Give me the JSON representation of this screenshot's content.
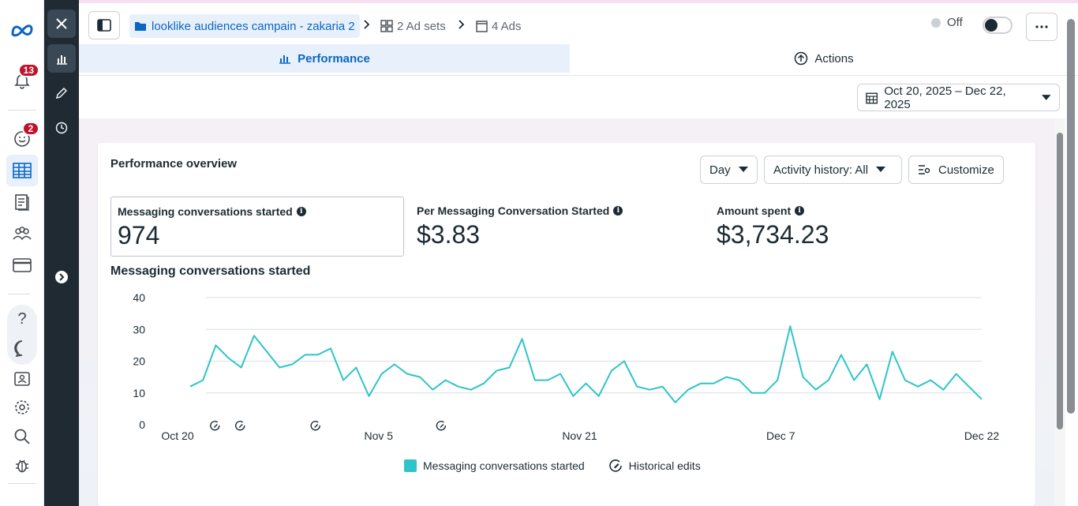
{
  "rail": {
    "notifications_badge": "13",
    "alerts_badge": "2"
  },
  "breadcrumb": {
    "campaign": "looklike audiences campain - zakaria 2",
    "ad_sets": "2 Ad sets",
    "ads": "4 Ads"
  },
  "status": {
    "label": "Off"
  },
  "tabs": [
    {
      "label": "Performance",
      "active": true
    },
    {
      "label": "Actions",
      "active": false
    }
  ],
  "date_range": "Oct 20, 2025 – Dec 22, 2025",
  "overview": {
    "title": "Performance overview",
    "controls": {
      "granularity": "Day",
      "activity": "Activity history: All",
      "customize": "Customize"
    },
    "metrics": [
      {
        "label": "Messaging conversations started",
        "value": "974"
      },
      {
        "label": "Per Messaging Conversation Started",
        "value": "$3.83"
      },
      {
        "label": "Amount spent",
        "value": "$3,734.23"
      }
    ]
  },
  "colors": {
    "accent": "#0a66c2",
    "series": "#2ec4c9",
    "badge": "#c0132a"
  },
  "chart_data": {
    "type": "line",
    "title": "Messaging conversations started",
    "x_tick_labels": [
      "Oct 20",
      "Nov 5",
      "Nov 21",
      "Dec 7",
      "Dec 22"
    ],
    "y_tick_labels": [
      "0",
      "10",
      "20",
      "30",
      "40"
    ],
    "ylim": [
      0,
      40
    ],
    "grid": true,
    "legend_position": "bottom",
    "x_start": "2025-10-20",
    "x_end": "2025-12-22",
    "series": [
      {
        "name": "Messaging conversations started",
        "values": [
          12,
          14,
          25,
          21,
          18,
          28,
          23,
          18,
          19,
          22,
          22,
          24,
          14,
          18,
          9,
          16,
          19,
          16,
          15,
          11,
          14,
          12,
          11,
          13,
          17,
          18,
          27,
          14,
          14,
          16,
          9,
          13,
          9,
          17,
          20,
          12,
          11,
          12,
          7,
          11,
          13,
          13,
          15,
          14,
          10,
          10,
          14,
          31,
          15,
          11,
          14,
          22,
          14,
          19,
          8,
          23,
          14,
          12,
          14,
          11,
          16,
          12,
          8
        ]
      }
    ],
    "historical_edits_label": "Historical edits",
    "historical_edit_dates": [
      "2025-10-22",
      "2025-10-24",
      "2025-10-30",
      "2025-11-09"
    ]
  }
}
